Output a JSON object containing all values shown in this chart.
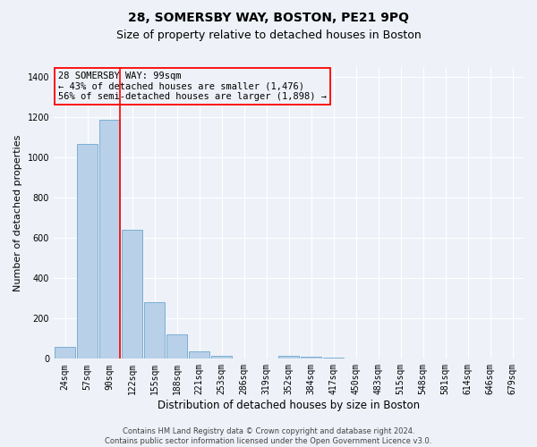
{
  "title1": "28, SOMERSBY WAY, BOSTON, PE21 9PQ",
  "title2": "Size of property relative to detached houses in Boston",
  "xlabel": "Distribution of detached houses by size in Boston",
  "ylabel": "Number of detached properties",
  "footnote": "Contains HM Land Registry data © Crown copyright and database right 2024.\nContains public sector information licensed under the Open Government Licence v3.0.",
  "bin_labels": [
    "24sqm",
    "57sqm",
    "90sqm",
    "122sqm",
    "155sqm",
    "188sqm",
    "221sqm",
    "253sqm",
    "286sqm",
    "319sqm",
    "352sqm",
    "384sqm",
    "417sqm",
    "450sqm",
    "483sqm",
    "515sqm",
    "548sqm",
    "581sqm",
    "614sqm",
    "646sqm",
    "679sqm"
  ],
  "bar_heights": [
    60,
    1070,
    1190,
    640,
    280,
    120,
    35,
    15,
    2,
    0,
    15,
    10,
    5,
    0,
    0,
    0,
    0,
    0,
    0,
    0,
    0
  ],
  "bar_color": "#b8d0e8",
  "bar_edge_color": "#7aafd4",
  "red_line_index": 2,
  "annotation_line1": "28 SOMERSBY WAY: 99sqm",
  "annotation_line2": "← 43% of detached houses are smaller (1,476)",
  "annotation_line3": "56% of semi-detached houses are larger (1,898) →",
  "ylim": [
    0,
    1450
  ],
  "yticks": [
    0,
    200,
    400,
    600,
    800,
    1000,
    1200,
    1400
  ],
  "background_color": "#eef2f8",
  "grid_color": "#ffffff",
  "title1_fontsize": 10,
  "title2_fontsize": 9,
  "tick_fontsize": 7,
  "ylabel_fontsize": 8,
  "xlabel_fontsize": 8.5,
  "annot_fontsize": 7.5,
  "footnote_fontsize": 6
}
